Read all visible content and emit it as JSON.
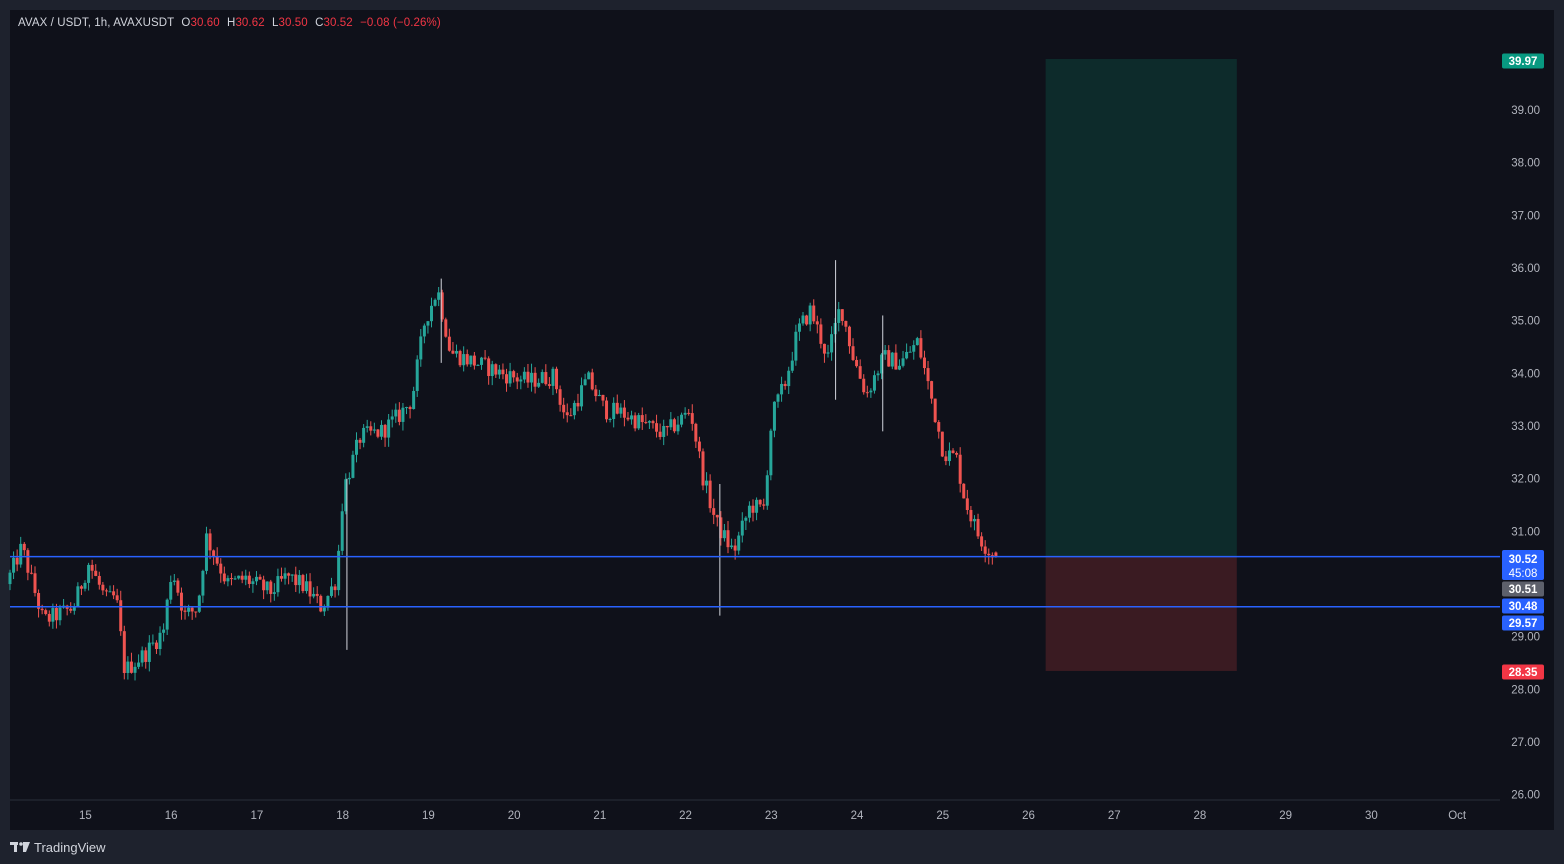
{
  "legend": {
    "symbol": "AVAX / USDT, 1h, AVAXUSDT",
    "o_label": "O",
    "o_value": "30.60",
    "h_label": "H",
    "h_value": "30.62",
    "l_label": "L",
    "l_value": "30.50",
    "c_label": "C",
    "c_value": "30.52",
    "change": "−0.08 (−0.26%)"
  },
  "brand": {
    "name": "TradingView",
    "icon": "tradingview-logo-icon"
  },
  "colors": {
    "up": "#26a69a",
    "down": "#ef5350",
    "line": "#2962ff",
    "profit_zone": "#0d2b2b",
    "loss_zone": "#3a1b22",
    "target_tag": "#089981",
    "stop_tag": "#f23645",
    "price_tag": "#2962ff",
    "last_tag": "#5d606b"
  },
  "chart_data": {
    "type": "candlestick",
    "interval": "1h",
    "y_axis_ticks": [
      "39.00",
      "38.00",
      "37.00",
      "36.00",
      "35.00",
      "34.00",
      "33.00",
      "32.00",
      "31.00",
      "29.00",
      "28.00",
      "27.00",
      "26.00"
    ],
    "y_axis_values": [
      39,
      38,
      37,
      36,
      35,
      34,
      33,
      32,
      31,
      29,
      28,
      27,
      26
    ],
    "ylim": [
      25.9,
      40.9
    ],
    "x_axis_ticks": [
      "15",
      "16",
      "17",
      "18",
      "19",
      "20",
      "21",
      "22",
      "23",
      "24",
      "25",
      "26",
      "27",
      "28",
      "29",
      "30",
      "Oct"
    ],
    "x_axis_days": [
      15,
      16,
      17,
      18,
      19,
      20,
      21,
      22,
      23,
      24,
      25,
      26,
      27,
      28,
      29,
      30,
      31
    ],
    "xlim_days": [
      14.12,
      31.5
    ],
    "horizontal_lines": [
      {
        "price": 30.52
      },
      {
        "price": 29.57
      }
    ],
    "position": {
      "type": "long",
      "entry": 30.52,
      "target": 39.97,
      "stop": 28.35,
      "start_day": 26.2,
      "end_day": 28.43
    },
    "price_tags": {
      "target": "39.97",
      "current_price": "30.52",
      "countdown": "45:08",
      "last": "30.51",
      "bid": "30.48",
      "line_low": "29.57",
      "stop": "28.35"
    },
    "start_day": 14.12,
    "end_day": 25.63,
    "path": [
      [
        14.12,
        30.0
      ],
      [
        14.3,
        30.7
      ],
      [
        14.55,
        29.3
      ],
      [
        14.9,
        29.55
      ],
      [
        15.08,
        30.4
      ],
      [
        15.28,
        29.7
      ],
      [
        15.4,
        29.75
      ],
      [
        15.5,
        28.35
      ],
      [
        15.75,
        28.7
      ],
      [
        15.95,
        29.1
      ],
      [
        16.05,
        30.3
      ],
      [
        16.2,
        29.4
      ],
      [
        16.35,
        29.55
      ],
      [
        16.45,
        30.9
      ],
      [
        16.7,
        30.0
      ],
      [
        16.9,
        30.1
      ],
      [
        17.2,
        29.85
      ],
      [
        17.4,
        30.15
      ],
      [
        17.6,
        29.95
      ],
      [
        17.8,
        29.55
      ],
      [
        17.97,
        30.1
      ],
      [
        18.05,
        31.8
      ],
      [
        18.25,
        32.8
      ],
      [
        18.5,
        32.9
      ],
      [
        18.7,
        33.2
      ],
      [
        18.85,
        33.5
      ],
      [
        19.0,
        35.0
      ],
      [
        19.15,
        35.6
      ],
      [
        19.3,
        34.4
      ],
      [
        19.6,
        34.2
      ],
      [
        19.9,
        34.0
      ],
      [
        20.2,
        33.85
      ],
      [
        20.5,
        33.95
      ],
      [
        20.65,
        33.1
      ],
      [
        20.9,
        33.9
      ],
      [
        21.1,
        33.3
      ],
      [
        21.3,
        33.25
      ],
      [
        21.6,
        33.0
      ],
      [
        21.8,
        32.85
      ],
      [
        22.1,
        33.3
      ],
      [
        22.25,
        32.0
      ],
      [
        22.4,
        31.15
      ],
      [
        22.6,
        30.6
      ],
      [
        22.8,
        31.5
      ],
      [
        22.95,
        31.4
      ],
      [
        23.05,
        33.2
      ],
      [
        23.2,
        33.8
      ],
      [
        23.35,
        34.8
      ],
      [
        23.5,
        35.2
      ],
      [
        23.7,
        34.3
      ],
      [
        23.85,
        35.3
      ],
      [
        24.0,
        34.3
      ],
      [
        24.15,
        33.6
      ],
      [
        24.35,
        34.3
      ],
      [
        24.55,
        34.2
      ],
      [
        24.75,
        34.6
      ],
      [
        24.9,
        33.6
      ],
      [
        25.05,
        32.5
      ],
      [
        25.2,
        32.4
      ],
      [
        25.3,
        31.6
      ],
      [
        25.45,
        30.95
      ],
      [
        25.55,
        30.7
      ],
      [
        25.63,
        30.52
      ]
    ],
    "wicks": [
      [
        18.05,
        28.75,
        32.0
      ],
      [
        19.15,
        34.2,
        35.8
      ],
      [
        22.4,
        29.4,
        31.9
      ],
      [
        23.75,
        33.5,
        36.15
      ],
      [
        24.3,
        32.9,
        35.1
      ]
    ],
    "last_candle": {
      "open": 30.6,
      "high": 30.62,
      "low": 30.5,
      "close": 30.52
    }
  }
}
